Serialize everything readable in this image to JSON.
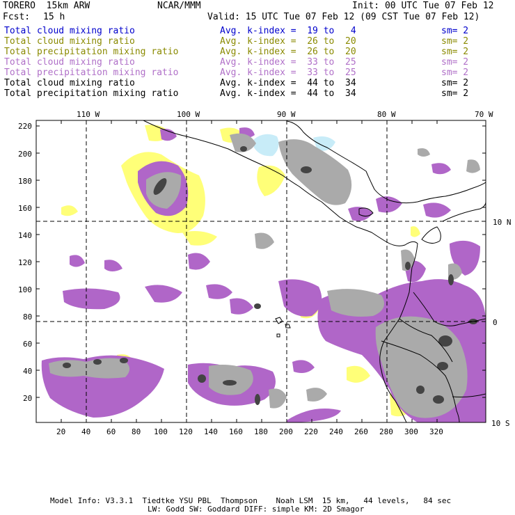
{
  "header": {
    "model": "TORERO  15km ARW",
    "center": "NCAR/MMM",
    "init": "Init: 00 UTC Tue 07 Feb 12",
    "fcst_label": "Fcst:",
    "fcst_value": "15 h",
    "valid": "Valid: 15 UTC Tue 07 Feb 12 (09 CST Tue 07 Feb 12)"
  },
  "legend": [
    {
      "field": "Total cloud mixing ratio",
      "index": "Avg. k-index =  19 to   4",
      "sm": "sm= 2",
      "color": "#0000cc"
    },
    {
      "field": "Total cloud mixing ratio",
      "index": "Avg. k-index =  26 to  20",
      "sm": "sm= 2",
      "color": "#8a8a00"
    },
    {
      "field": "Total precipitation mixing ratio",
      "index": "Avg. k-index =  26 to  20",
      "sm": "sm= 2",
      "color": "#8a8a00"
    },
    {
      "field": "Total cloud mixing ratio",
      "index": "Avg. k-index =  33 to  25",
      "sm": "sm= 2",
      "color": "#b070c8"
    },
    {
      "field": "Total precipitation mixing ratio",
      "index": "Avg. k-index =  33 to  25",
      "sm": "sm= 2",
      "color": "#b070c8"
    },
    {
      "field": "Total cloud mixing ratio",
      "index": "Avg. k-index =  44 to  34",
      "sm": "sm= 2",
      "color": "#000000"
    },
    {
      "field": "Total precipitation mixing ratio",
      "index": "Avg. k-index =  44 to  34",
      "sm": "sm= 2",
      "color": "#000000"
    }
  ],
  "map": {
    "lon_labels": [
      "110 W",
      "100 W",
      "90 W",
      "80 W",
      "70 W"
    ],
    "lat_labels": [
      "10 N",
      "0",
      "10 S"
    ],
    "y_ticks": [
      "220",
      "200",
      "180",
      "160",
      "140",
      "120",
      "100",
      "80",
      "60",
      "40",
      "20"
    ],
    "x_ticks": [
      "20",
      "40",
      "60",
      "80",
      "100",
      "120",
      "140",
      "160",
      "180",
      "200",
      "220",
      "240",
      "260",
      "280",
      "300",
      "320"
    ],
    "colors": {
      "light_blue": "#c8ecf8",
      "yellow": "#ffff78",
      "purple": "#b066c8",
      "gray": "#aaaaaa",
      "dark": "#444444"
    }
  },
  "footer": {
    "line1": "Model Info: V3.3.1  Tiedtke YSU PBL  Thompson    Noah LSM  15 km,   44 levels,   84 sec",
    "line2": "LW: Godd SW: Goddard DIFF: simple KM: 2D Smagor"
  }
}
